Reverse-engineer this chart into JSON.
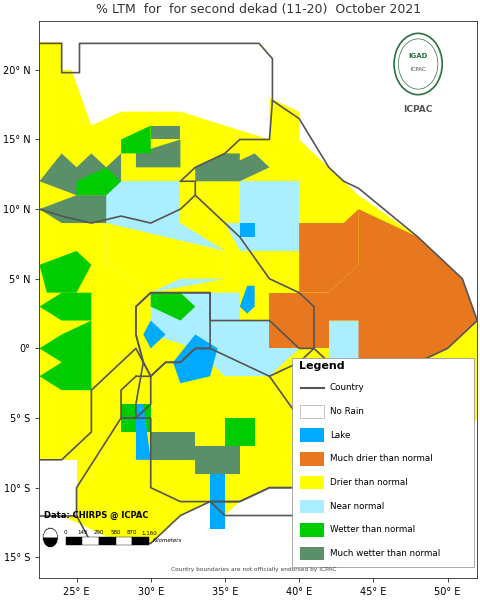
{
  "title": "% LTM  for  for second dekad (11-20)  October 2021",
  "title_fontsize": 9,
  "background_color": "#ffffff",
  "ocean_color": "#ffffff",
  "legend_title": "Legend",
  "legend_items": [
    {
      "label": "Country",
      "color": "#555555",
      "type": "line"
    },
    {
      "label": "No Rain",
      "color": "#ffffff",
      "type": "patch",
      "edgecolor": "#aaaaaa"
    },
    {
      "label": "Lake",
      "color": "#00aaff",
      "type": "patch"
    },
    {
      "label": "Much drier than normal",
      "color": "#e87820",
      "type": "patch"
    },
    {
      "label": "Drier than normal",
      "color": "#ffff00",
      "type": "patch"
    },
    {
      "label": "Near normal",
      "color": "#aaeeff",
      "type": "patch"
    },
    {
      "label": "Wetter than normal",
      "color": "#00cc00",
      "type": "patch"
    },
    {
      "label": "Much wetter than normal",
      "color": "#5a8f6a",
      "type": "patch"
    }
  ],
  "xlabel_ticks": [
    "25° E",
    "30° E",
    "35° E",
    "40° E",
    "45° E",
    "50° E"
  ],
  "xlabel_vals": [
    25,
    30,
    35,
    40,
    45,
    50
  ],
  "ylabel_ticks": [
    "20° N",
    "15° N",
    "10° N",
    "5° N",
    "0°",
    "5° S",
    "10° S",
    "15° S"
  ],
  "ylabel_vals": [
    20,
    15,
    10,
    5,
    0,
    -5,
    -10,
    -15
  ],
  "xlim": [
    22.5,
    52
  ],
  "ylim": [
    -16.5,
    23.5
  ],
  "data_source": "Data: CHIRPS @ ICPAC",
  "disclaimer": "Country boundaries are not officially endorsed by ICPAC",
  "scale_label": "Kilometers",
  "scale_ticks": [
    "0",
    "145",
    "290",
    "580",
    "870",
    "1,160"
  ],
  "figsize": [
    4.8,
    6.0
  ],
  "dpi": 100,
  "border_color": "#555555",
  "border_lw": 1.2
}
